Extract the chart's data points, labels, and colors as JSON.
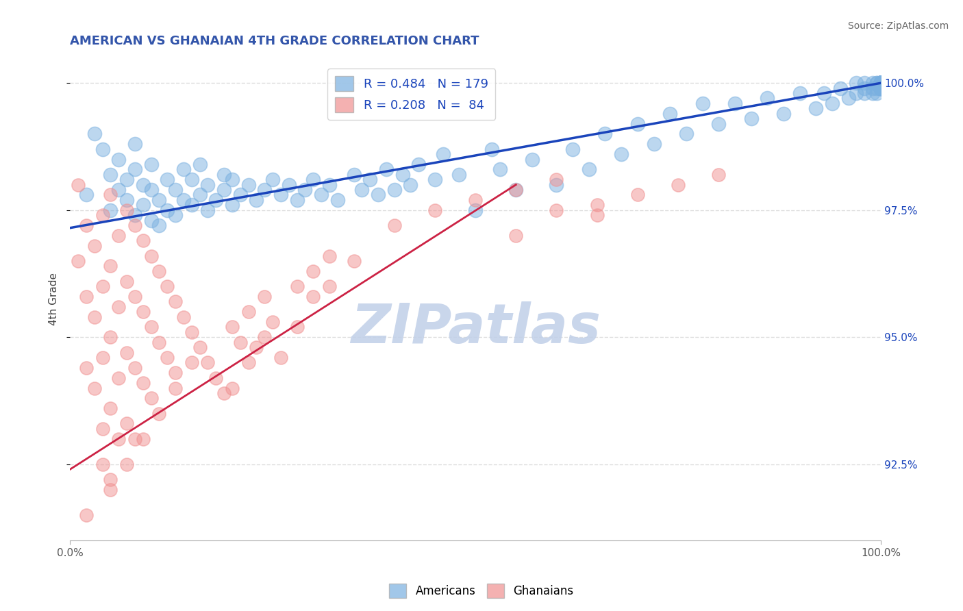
{
  "title": "AMERICAN VS GHANAIAN 4TH GRADE CORRELATION CHART",
  "source_text": "Source: ZipAtlas.com",
  "ylabel": "4th Grade",
  "title_color": "#3355aa",
  "title_fontsize": 13,
  "source_fontsize": 10,
  "xmin": 0.0,
  "xmax": 1.0,
  "ymin": 0.91,
  "ymax": 1.005,
  "yticks": [
    0.925,
    0.95,
    0.975,
    1.0
  ],
  "ytick_labels": [
    "92.5%",
    "95.0%",
    "97.5%",
    "100.0%"
  ],
  "xtick_labels": [
    "0.0%",
    "100.0%"
  ],
  "xticks": [
    0.0,
    1.0
  ],
  "legend_R1": "R = 0.484",
  "legend_N1": "N = 179",
  "legend_R2": "R = 0.208",
  "legend_N2": "N =  84",
  "blue_color": "#7ab0e0",
  "pink_color": "#f09090",
  "trend_blue": "#1a44bb",
  "trend_pink": "#cc2244",
  "watermark": "ZIPatlas",
  "watermark_color": "#c0cfe8",
  "bg_color": "#ffffff",
  "grid_color": "#dddddd",
  "americans_label": "Americans",
  "ghanaians_label": "Ghanaians",
  "blue_scatter_x": [
    0.02,
    0.03,
    0.04,
    0.05,
    0.05,
    0.06,
    0.06,
    0.07,
    0.07,
    0.08,
    0.08,
    0.08,
    0.09,
    0.09,
    0.1,
    0.1,
    0.1,
    0.11,
    0.11,
    0.12,
    0.12,
    0.13,
    0.13,
    0.14,
    0.14,
    0.15,
    0.15,
    0.16,
    0.16,
    0.17,
    0.17,
    0.18,
    0.19,
    0.19,
    0.2,
    0.2,
    0.21,
    0.22,
    0.23,
    0.24,
    0.25,
    0.26,
    0.27,
    0.28,
    0.29,
    0.3,
    0.31,
    0.32,
    0.33,
    0.35,
    0.36,
    0.37,
    0.38,
    0.39,
    0.4,
    0.41,
    0.42,
    0.43,
    0.45,
    0.46,
    0.48,
    0.5,
    0.52,
    0.53,
    0.55,
    0.57,
    0.6,
    0.62,
    0.64,
    0.66,
    0.68,
    0.7,
    0.72,
    0.74,
    0.76,
    0.78,
    0.8,
    0.82,
    0.84,
    0.86,
    0.88,
    0.9,
    0.92,
    0.93,
    0.94,
    0.95,
    0.96,
    0.97,
    0.97,
    0.98,
    0.98,
    0.98,
    0.99,
    0.99,
    0.99,
    0.995,
    0.995,
    0.995,
    0.995,
    1.0,
    1.0,
    1.0,
    1.0,
    1.0,
    1.0,
    1.0,
    1.0,
    1.0,
    1.0,
    1.0,
    1.0,
    1.0,
    1.0,
    1.0,
    1.0,
    1.0,
    1.0,
    1.0,
    1.0,
    1.0,
    1.0,
    1.0,
    1.0,
    1.0,
    1.0,
    1.0,
    1.0,
    1.0,
    1.0,
    1.0,
    1.0,
    1.0,
    1.0,
    1.0,
    1.0,
    1.0,
    1.0,
    1.0,
    1.0,
    1.0,
    1.0,
    1.0,
    1.0,
    1.0,
    1.0,
    1.0,
    1.0,
    1.0,
    1.0,
    1.0,
    1.0,
    1.0,
    1.0,
    1.0,
    1.0,
    1.0,
    1.0,
    1.0,
    1.0,
    1.0,
    1.0,
    1.0,
    1.0,
    1.0,
    1.0,
    1.0,
    1.0,
    1.0,
    1.0,
    1.0,
    1.0,
    1.0,
    1.0,
    1.0,
    1.0,
    1.0,
    1.0,
    1.0,
    1.0
  ],
  "blue_scatter_y": [
    0.978,
    0.99,
    0.987,
    0.975,
    0.982,
    0.979,
    0.985,
    0.981,
    0.977,
    0.974,
    0.983,
    0.988,
    0.976,
    0.98,
    0.973,
    0.979,
    0.984,
    0.972,
    0.977,
    0.975,
    0.981,
    0.974,
    0.979,
    0.977,
    0.983,
    0.976,
    0.981,
    0.978,
    0.984,
    0.98,
    0.975,
    0.977,
    0.982,
    0.979,
    0.981,
    0.976,
    0.978,
    0.98,
    0.977,
    0.979,
    0.981,
    0.978,
    0.98,
    0.977,
    0.979,
    0.981,
    0.978,
    0.98,
    0.977,
    0.982,
    0.979,
    0.981,
    0.978,
    0.983,
    0.979,
    0.982,
    0.98,
    0.984,
    0.981,
    0.986,
    0.982,
    0.975,
    0.987,
    0.983,
    0.979,
    0.985,
    0.98,
    0.987,
    0.983,
    0.99,
    0.986,
    0.992,
    0.988,
    0.994,
    0.99,
    0.996,
    0.992,
    0.996,
    0.993,
    0.997,
    0.994,
    0.998,
    0.995,
    0.998,
    0.996,
    0.999,
    0.997,
    0.998,
    1.0,
    0.999,
    0.998,
    1.0,
    0.999,
    1.0,
    0.998,
    0.999,
    1.0,
    0.998,
    1.0,
    0.999,
    1.0,
    0.999,
    1.0,
    1.0,
    0.999,
    1.0,
    1.0,
    0.999,
    1.0,
    1.0,
    1.0,
    0.999,
    1.0,
    1.0,
    1.0,
    1.0,
    1.0,
    1.0,
    1.0,
    1.0,
    0.999,
    1.0,
    1.0,
    1.0,
    1.0,
    1.0,
    1.0,
    1.0,
    1.0,
    1.0,
    1.0,
    1.0,
    1.0,
    1.0,
    1.0,
    1.0,
    1.0,
    1.0,
    1.0,
    1.0,
    1.0,
    1.0,
    1.0,
    1.0,
    1.0,
    1.0,
    1.0,
    1.0,
    1.0,
    1.0,
    1.0,
    1.0,
    1.0,
    1.0,
    1.0,
    1.0,
    1.0,
    1.0,
    1.0,
    1.0,
    1.0,
    1.0,
    1.0,
    1.0,
    1.0,
    1.0,
    1.0,
    1.0,
    1.0,
    1.0,
    1.0,
    1.0,
    1.0,
    1.0,
    1.0,
    1.0,
    1.0,
    1.0,
    1.0
  ],
  "pink_scatter_x": [
    0.01,
    0.01,
    0.02,
    0.02,
    0.02,
    0.03,
    0.03,
    0.03,
    0.04,
    0.04,
    0.04,
    0.04,
    0.05,
    0.05,
    0.05,
    0.05,
    0.05,
    0.06,
    0.06,
    0.06,
    0.07,
    0.07,
    0.07,
    0.07,
    0.08,
    0.08,
    0.08,
    0.08,
    0.09,
    0.09,
    0.09,
    0.1,
    0.1,
    0.1,
    0.11,
    0.11,
    0.12,
    0.12,
    0.13,
    0.13,
    0.14,
    0.15,
    0.16,
    0.17,
    0.18,
    0.19,
    0.2,
    0.21,
    0.22,
    0.23,
    0.24,
    0.25,
    0.28,
    0.3,
    0.32,
    0.35,
    0.4,
    0.45,
    0.5,
    0.55,
    0.6,
    0.65,
    0.7,
    0.75,
    0.8,
    0.55,
    0.6,
    0.65,
    0.2,
    0.22,
    0.24,
    0.26,
    0.28,
    0.3,
    0.32,
    0.05,
    0.07,
    0.09,
    0.11,
    0.13,
    0.15,
    0.02,
    0.04,
    0.06
  ],
  "pink_scatter_y": [
    0.98,
    0.965,
    0.972,
    0.958,
    0.944,
    0.968,
    0.954,
    0.94,
    0.974,
    0.96,
    0.946,
    0.932,
    0.978,
    0.964,
    0.95,
    0.936,
    0.922,
    0.97,
    0.956,
    0.942,
    0.975,
    0.961,
    0.947,
    0.933,
    0.972,
    0.958,
    0.944,
    0.93,
    0.969,
    0.955,
    0.941,
    0.966,
    0.952,
    0.938,
    0.963,
    0.949,
    0.96,
    0.946,
    0.957,
    0.943,
    0.954,
    0.951,
    0.948,
    0.945,
    0.942,
    0.939,
    0.952,
    0.949,
    0.955,
    0.948,
    0.958,
    0.953,
    0.96,
    0.963,
    0.966,
    0.965,
    0.972,
    0.975,
    0.977,
    0.979,
    0.981,
    0.976,
    0.978,
    0.98,
    0.982,
    0.97,
    0.975,
    0.974,
    0.94,
    0.945,
    0.95,
    0.946,
    0.952,
    0.958,
    0.96,
    0.92,
    0.925,
    0.93,
    0.935,
    0.94,
    0.945,
    0.915,
    0.925,
    0.93
  ],
  "blue_trend_x": [
    0.0,
    1.0
  ],
  "blue_trend_y": [
    0.9715,
    1.0
  ],
  "pink_trend_x": [
    0.0,
    0.55
  ],
  "pink_trend_y": [
    0.924,
    0.98
  ]
}
